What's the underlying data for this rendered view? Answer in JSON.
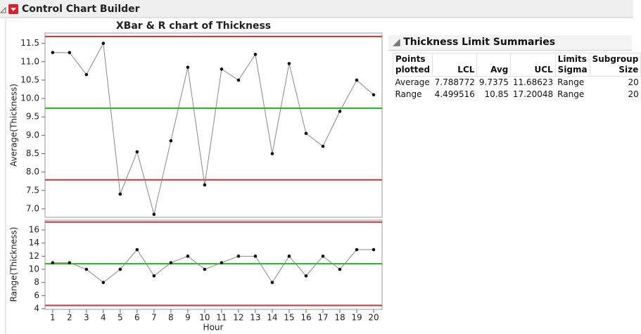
{
  "header": {
    "title": "Control Chart Builder"
  },
  "chart_data": [
    {
      "type": "line",
      "title": "XBar & R chart of Thickness",
      "ylabel": "Average(Thickness)",
      "x": [
        1,
        2,
        3,
        4,
        5,
        6,
        7,
        8,
        9,
        10,
        11,
        12,
        13,
        14,
        15,
        16,
        17,
        18,
        19,
        20
      ],
      "values": [
        11.25,
        11.25,
        10.65,
        11.5,
        7.4,
        8.55,
        6.85,
        8.85,
        10.85,
        7.65,
        10.8,
        10.5,
        11.2,
        8.5,
        10.95,
        9.05,
        8.7,
        9.65,
        10.5,
        10.1
      ],
      "color": "#888888",
      "marker_color": "#111111",
      "xlim": [
        0.55,
        20.5
      ],
      "ylim": [
        6.77,
        11.78
      ],
      "yticks": [
        {
          "value": 7.0,
          "label": "7.0"
        },
        7.5,
        {
          "value": 8.0,
          "label": "8.0"
        },
        8.5,
        {
          "value": 9.0,
          "label": "9.0"
        },
        9.5,
        {
          "value": 10.0,
          "label": "10.0"
        },
        10.5,
        {
          "value": 11.0,
          "label": "11.0"
        },
        11.5
      ],
      "ucl": 11.68623,
      "center": 9.7375,
      "lcl": 7.788772,
      "limit_color": "#c8323c",
      "center_color": "#23b023"
    },
    {
      "type": "line",
      "ylabel": "Range(Thickness)",
      "xlabel": "Hour",
      "x": [
        1,
        2,
        3,
        4,
        5,
        6,
        7,
        8,
        9,
        10,
        11,
        12,
        13,
        14,
        15,
        16,
        17,
        18,
        19,
        20
      ],
      "values": [
        11,
        11,
        10,
        8,
        10,
        13,
        9,
        11,
        12,
        10,
        11,
        12,
        12,
        8,
        12,
        9,
        12,
        10,
        13,
        13
      ],
      "color": "#888888",
      "marker_color": "#111111",
      "xlim": [
        0.55,
        20.5
      ],
      "ylim": [
        3.9,
        17.5
      ],
      "xticks": [
        1,
        2,
        3,
        4,
        5,
        6,
        7,
        8,
        9,
        10,
        11,
        12,
        13,
        14,
        15,
        16,
        17,
        18,
        19,
        20
      ],
      "yticks": [
        4,
        6,
        8,
        10,
        12,
        14,
        16
      ],
      "ucl": 17.20048,
      "center": 10.85,
      "lcl": 4.499516,
      "limit_color": "#c8323c",
      "center_color": "#23b023"
    }
  ],
  "table": {
    "title": "Thickness Limit Summaries",
    "columns": [
      "Points plotted",
      "LCL",
      "Avg",
      "UCL",
      "Limits Sigma",
      "Subgroup Size"
    ],
    "rows": [
      [
        "Average",
        7.788772,
        9.7375,
        11.68623,
        "Range",
        20
      ],
      [
        "Range",
        4.499516,
        10.85,
        17.20048,
        "Range",
        20
      ]
    ]
  }
}
